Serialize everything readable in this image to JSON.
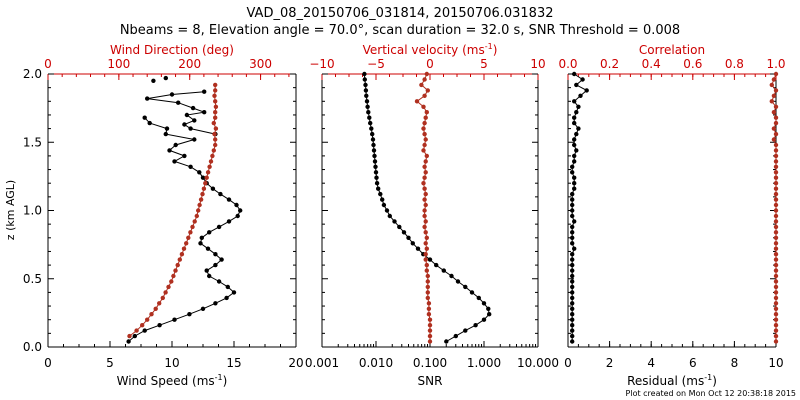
{
  "title": {
    "line1": "VAD_08_20150706_031814, 20150706.031832",
    "line2": "Nbeams = 8, Elevation angle = 70.0°, scan duration = 32.0 s, SNR Threshold = 0.008"
  },
  "footer": "Plot created on Mon Oct 12 20:38:18 2015",
  "colors": {
    "black_series": "#000000",
    "red_series": "#b03020",
    "red_axis": "#cc0000"
  },
  "chart_data": [
    {
      "type": "line",
      "panel": "wind",
      "ylabel": "z (km AGL)",
      "ylim": [
        0,
        2.0
      ],
      "ytick_labels": [
        "0.0",
        "0.5",
        "1.0",
        "1.5",
        "2.0"
      ],
      "bottom_axis": {
        "label_main": "Wind Speed (ms",
        "label_sup": "-1",
        "label_tail": ")",
        "xlim": [
          0,
          20
        ],
        "tick_labels": [
          "0",
          "5",
          "10",
          "15",
          "20"
        ]
      },
      "top_axis": {
        "label": "Wind Direction (deg)",
        "xlim": [
          0,
          350
        ],
        "tick_labels": [
          "0",
          "100",
          "200",
          "300"
        ]
      },
      "series": [
        {
          "axis": "bottom",
          "color": "black",
          "marker": "dot",
          "x": [
            6.5,
            7.0,
            7.8,
            9.0,
            10.2,
            11.4,
            12.5,
            13.5,
            14.4,
            15.0,
            14.5,
            13.8,
            13.0,
            12.8,
            13.5,
            14.0,
            13.5,
            12.9,
            12.3,
            12.4,
            13.0,
            13.8,
            14.6,
            15.3,
            15.5,
            15.2,
            14.6,
            13.9,
            13.3,
            12.8,
            12.5,
            12.2,
            11.5,
            10.2,
            11.0,
            9.8,
            10.3,
            11.8,
            9.5,
            9.6,
            8.2,
            7.8
          ],
          "y": [
            0.04,
            0.08,
            0.12,
            0.16,
            0.2,
            0.24,
            0.28,
            0.32,
            0.36,
            0.4,
            0.44,
            0.48,
            0.52,
            0.56,
            0.6,
            0.64,
            0.68,
            0.72,
            0.76,
            0.8,
            0.84,
            0.88,
            0.92,
            0.96,
            1.0,
            1.04,
            1.08,
            1.12,
            1.16,
            1.2,
            1.24,
            1.28,
            1.32,
            1.36,
            1.4,
            1.44,
            1.48,
            1.52,
            1.56,
            1.6,
            1.64,
            1.68
          ]
        },
        {
          "axis": "bottom",
          "color": "black",
          "marker": "dot",
          "connected": true,
          "x": [
            13.5,
            11.5,
            11.0,
            11.8,
            11.2,
            12.6,
            11.7,
            10.5,
            8.0,
            10.0,
            12.6
          ],
          "y": [
            1.56,
            1.6,
            1.63,
            1.66,
            1.7,
            1.72,
            1.75,
            1.79,
            1.82,
            1.85,
            1.87
          ]
        },
        {
          "axis": "bottom",
          "color": "black",
          "marker": "dot",
          "connected": false,
          "x": [
            8.5,
            9.5
          ],
          "y": [
            1.95,
            1.97
          ]
        },
        {
          "axis": "top",
          "color": "red",
          "marker": "dot",
          "x": [
            115,
            125,
            133,
            140,
            146,
            152,
            157,
            162,
            166,
            170,
            174,
            177,
            180,
            183,
            186,
            189,
            192,
            195,
            198,
            201,
            204,
            207,
            210,
            212,
            214,
            216,
            218,
            220,
            222,
            224,
            226,
            228,
            230,
            232,
            234,
            236,
            236,
            235,
            237,
            234,
            236,
            236,
            237,
            236,
            235,
            236,
            236
          ],
          "y": [
            0.08,
            0.12,
            0.16,
            0.2,
            0.24,
            0.28,
            0.32,
            0.36,
            0.4,
            0.44,
            0.48,
            0.52,
            0.56,
            0.6,
            0.64,
            0.68,
            0.72,
            0.76,
            0.8,
            0.84,
            0.88,
            0.92,
            0.96,
            1.0,
            1.04,
            1.08,
            1.12,
            1.16,
            1.2,
            1.24,
            1.28,
            1.32,
            1.36,
            1.4,
            1.44,
            1.48,
            1.52,
            1.56,
            1.6,
            1.64,
            1.68,
            1.72,
            1.76,
            1.8,
            1.84,
            1.88,
            1.92
          ]
        }
      ]
    },
    {
      "type": "line",
      "panel": "snr",
      "ylim": [
        0,
        2.0
      ],
      "bottom_axis": {
        "label": "SNR",
        "scale": "log",
        "xlim": [
          0.001,
          10
        ],
        "tick_labels": [
          "0.001",
          "0.010",
          "0.100",
          "1.000",
          "10.000"
        ]
      },
      "top_axis": {
        "label_main": "Vertical velocity (ms",
        "label_sup": "-1",
        "label_tail": ")",
        "xlim": [
          -10,
          10
        ],
        "tick_labels": [
          "−10",
          "−5",
          "0",
          "5",
          "10"
        ]
      },
      "series": [
        {
          "axis": "bottom",
          "color": "black",
          "marker": "dot",
          "x": [
            0.2,
            0.3,
            0.45,
            0.7,
            1.0,
            1.25,
            1.2,
            1.0,
            0.8,
            0.6,
            0.45,
            0.33,
            0.25,
            0.18,
            0.13,
            0.1,
            0.075,
            0.06,
            0.048,
            0.04,
            0.033,
            0.027,
            0.022,
            0.018,
            0.016,
            0.014,
            0.013,
            0.012,
            0.011,
            0.0105,
            0.0102,
            0.01,
            0.0098,
            0.0096,
            0.0094,
            0.0092,
            0.009,
            0.0088,
            0.0085,
            0.0082,
            0.0078,
            0.0075,
            0.0072,
            0.007,
            0.0068,
            0.0066,
            0.0065,
            0.0064,
            0.0062,
            0.0061
          ],
          "y": [
            0.04,
            0.08,
            0.12,
            0.16,
            0.2,
            0.24,
            0.28,
            0.32,
            0.36,
            0.4,
            0.44,
            0.48,
            0.52,
            0.56,
            0.6,
            0.64,
            0.68,
            0.72,
            0.76,
            0.8,
            0.84,
            0.88,
            0.92,
            0.96,
            1.0,
            1.04,
            1.08,
            1.12,
            1.16,
            1.2,
            1.24,
            1.28,
            1.32,
            1.36,
            1.4,
            1.44,
            1.48,
            1.52,
            1.56,
            1.6,
            1.64,
            1.68,
            1.72,
            1.76,
            1.8,
            1.84,
            1.88,
            1.92,
            1.96,
            2.0
          ]
        },
        {
          "axis": "top",
          "color": "red",
          "marker": "dot",
          "x": [
            0.0,
            0.0,
            0.0,
            0.0,
            0.0,
            -0.1,
            -0.1,
            -0.1,
            -0.2,
            -0.2,
            -0.2,
            -0.2,
            -0.2,
            -0.3,
            -0.3,
            -0.4,
            -0.4,
            -0.3,
            -0.4,
            -0.3,
            -0.4,
            -0.5,
            -0.4,
            -0.5,
            -0.5,
            -0.4,
            -0.5,
            -0.4,
            -0.5,
            -0.6,
            -0.5,
            -0.4,
            -0.5,
            -0.4,
            -0.3,
            -0.6,
            -0.5,
            -0.4,
            -0.5,
            -0.6,
            -0.5,
            -0.4,
            -0.3,
            -0.6,
            -1.2,
            -0.5,
            -0.2,
            -0.8,
            -0.5,
            -0.3
          ],
          "y": [
            0.04,
            0.08,
            0.12,
            0.16,
            0.2,
            0.24,
            0.28,
            0.32,
            0.36,
            0.4,
            0.44,
            0.48,
            0.52,
            0.56,
            0.6,
            0.64,
            0.68,
            0.72,
            0.76,
            0.8,
            0.84,
            0.88,
            0.92,
            0.96,
            1.0,
            1.04,
            1.08,
            1.12,
            1.16,
            1.2,
            1.24,
            1.28,
            1.32,
            1.36,
            1.4,
            1.44,
            1.48,
            1.52,
            1.56,
            1.6,
            1.64,
            1.68,
            1.72,
            1.76,
            1.8,
            1.84,
            1.88,
            1.92,
            1.96,
            2.0
          ]
        }
      ]
    },
    {
      "type": "line",
      "panel": "residual",
      "ylim": [
        0,
        2.0
      ],
      "bottom_axis": {
        "label_main": "Residual (ms",
        "label_sup": "-1",
        "label_tail": ")",
        "xlim": [
          0,
          10
        ],
        "tick_labels": [
          "0",
          "2",
          "4",
          "6",
          "8",
          "10"
        ]
      },
      "top_axis": {
        "label": "Correlation",
        "xlim": [
          0.0,
          1.0
        ],
        "tick_labels": [
          "0.0",
          "0.2",
          "0.4",
          "0.6",
          "0.8",
          "1.0"
        ]
      },
      "series": [
        {
          "axis": "bottom",
          "color": "black",
          "marker": "dot",
          "x": [
            0.2,
            0.2,
            0.2,
            0.2,
            0.2,
            0.2,
            0.2,
            0.2,
            0.2,
            0.2,
            0.2,
            0.2,
            0.2,
            0.2,
            0.2,
            0.2,
            0.2,
            0.3,
            0.2,
            0.2,
            0.2,
            0.2,
            0.3,
            0.2,
            0.2,
            0.2,
            0.2,
            0.2,
            0.3,
            0.3,
            0.3,
            0.2,
            0.2,
            0.3,
            0.3,
            0.4,
            0.3,
            0.3,
            0.4,
            0.5,
            0.3,
            0.3,
            0.4,
            0.5,
            0.3,
            0.6,
            0.9,
            0.4,
            0.7,
            0.3
          ],
          "y": [
            0.04,
            0.08,
            0.12,
            0.16,
            0.2,
            0.24,
            0.28,
            0.32,
            0.36,
            0.4,
            0.44,
            0.48,
            0.52,
            0.56,
            0.6,
            0.64,
            0.68,
            0.72,
            0.76,
            0.8,
            0.84,
            0.88,
            0.92,
            0.96,
            1.0,
            1.04,
            1.08,
            1.12,
            1.16,
            1.2,
            1.24,
            1.28,
            1.32,
            1.36,
            1.4,
            1.44,
            1.48,
            1.52,
            1.56,
            1.6,
            1.64,
            1.68,
            1.72,
            1.76,
            1.8,
            1.84,
            1.88,
            1.92,
            1.96,
            2.0
          ]
        },
        {
          "axis": "top",
          "color": "red",
          "marker": "dot",
          "x": [
            1.0,
            1.0,
            1.0,
            1.0,
            1.0,
            1.0,
            1.0,
            1.0,
            1.0,
            1.0,
            1.0,
            1.0,
            1.0,
            1.0,
            1.0,
            1.0,
            1.0,
            1.0,
            1.0,
            1.0,
            1.0,
            1.0,
            1.0,
            1.0,
            1.0,
            1.0,
            1.0,
            1.0,
            1.0,
            1.0,
            1.0,
            1.0,
            1.0,
            1.0,
            1.0,
            1.0,
            1.0,
            0.99,
            1.0,
            0.99,
            1.0,
            1.0,
            0.99,
            1.0,
            0.98,
            0.99,
            1.0,
            0.98,
            0.99,
            1.0
          ],
          "y": [
            0.04,
            0.08,
            0.12,
            0.16,
            0.2,
            0.24,
            0.28,
            0.32,
            0.36,
            0.4,
            0.44,
            0.48,
            0.52,
            0.56,
            0.6,
            0.64,
            0.68,
            0.72,
            0.76,
            0.8,
            0.84,
            0.88,
            0.92,
            0.96,
            1.0,
            1.04,
            1.08,
            1.12,
            1.16,
            1.2,
            1.24,
            1.28,
            1.32,
            1.36,
            1.4,
            1.44,
            1.48,
            1.52,
            1.56,
            1.6,
            1.64,
            1.68,
            1.72,
            1.76,
            1.8,
            1.84,
            1.88,
            1.92,
            1.96,
            2.0
          ]
        }
      ]
    }
  ]
}
